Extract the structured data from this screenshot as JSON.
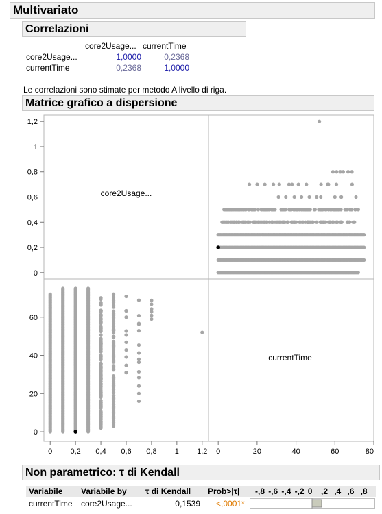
{
  "multivariato": {
    "title": "Multivariato"
  },
  "correlazioni": {
    "title": "Correlazioni",
    "col_headers": [
      "core2Usage...",
      "currentTime"
    ],
    "rows": [
      {
        "label": "core2Usage...",
        "values": [
          "1,0000",
          "0,2368"
        ]
      },
      {
        "label": "currentTime",
        "values": [
          "0,2368",
          "1,0000"
        ]
      }
    ],
    "note": "Le correlazioni sono stimate per metodo A livello di riga."
  },
  "scatter_matrix": {
    "title": "Matrice grafico a dispersione",
    "diag_labels": [
      "core2Usage...",
      "currentTime"
    ],
    "core2_ticks": [
      "0",
      "0,2",
      "0,4",
      "0,6",
      "0,8",
      "1",
      "1,2"
    ],
    "time_ticks": [
      "0",
      "20",
      "40",
      "60",
      "80"
    ],
    "point_color": "#a6a6a6",
    "highlight_color": "#000000"
  },
  "chart_data": {
    "type": "scatter",
    "variables": [
      "core2Usage...",
      "currentTime"
    ],
    "core2_range": [
      -0.05,
      1.25
    ],
    "time_range": [
      -5,
      80
    ],
    "core2_levels": [
      0,
      0.1,
      0.2,
      0.3,
      0.4,
      0.5,
      0.6,
      0.7,
      0.8,
      1.2
    ],
    "points": [
      {
        "core2": 0,
        "time": [
          0,
          72
        ]
      },
      {
        "core2": 0.1,
        "time": [
          0,
          75
        ]
      },
      {
        "core2": 0.2,
        "time": [
          0,
          75
        ]
      },
      {
        "core2": 0.3,
        "time": [
          0,
          75
        ]
      },
      {
        "core2": 0.4,
        "time": [
          2,
          74
        ]
      },
      {
        "core2": 0.5,
        "time": [
          3,
          74
        ]
      },
      {
        "core2": 0.6,
        "time": [
          31,
          73
        ]
      },
      {
        "core2": 0.7,
        "time": [
          16,
          70
        ]
      },
      {
        "core2": 0.8,
        "time": [
          59,
          69
        ]
      },
      {
        "core2": 1.2,
        "time": [
          52,
          52
        ]
      }
    ],
    "highlight": {
      "core2": 0.2,
      "time": 0
    }
  },
  "kendall": {
    "title": "Non parametrico: τ di Kendall",
    "headers": [
      "Variabile",
      "Variabile by",
      "τ di Kendall",
      "Prob>|τ|"
    ],
    "scale_labels": [
      "-,8",
      "-,6",
      "-,4",
      "-,2",
      "0",
      ",2",
      ",4",
      ",6",
      ",8"
    ],
    "row": {
      "var": "currentTime",
      "by": "core2Usage...",
      "tau": "0,1539",
      "prob": "<,0001*"
    },
    "tau_value": 0.1539
  }
}
